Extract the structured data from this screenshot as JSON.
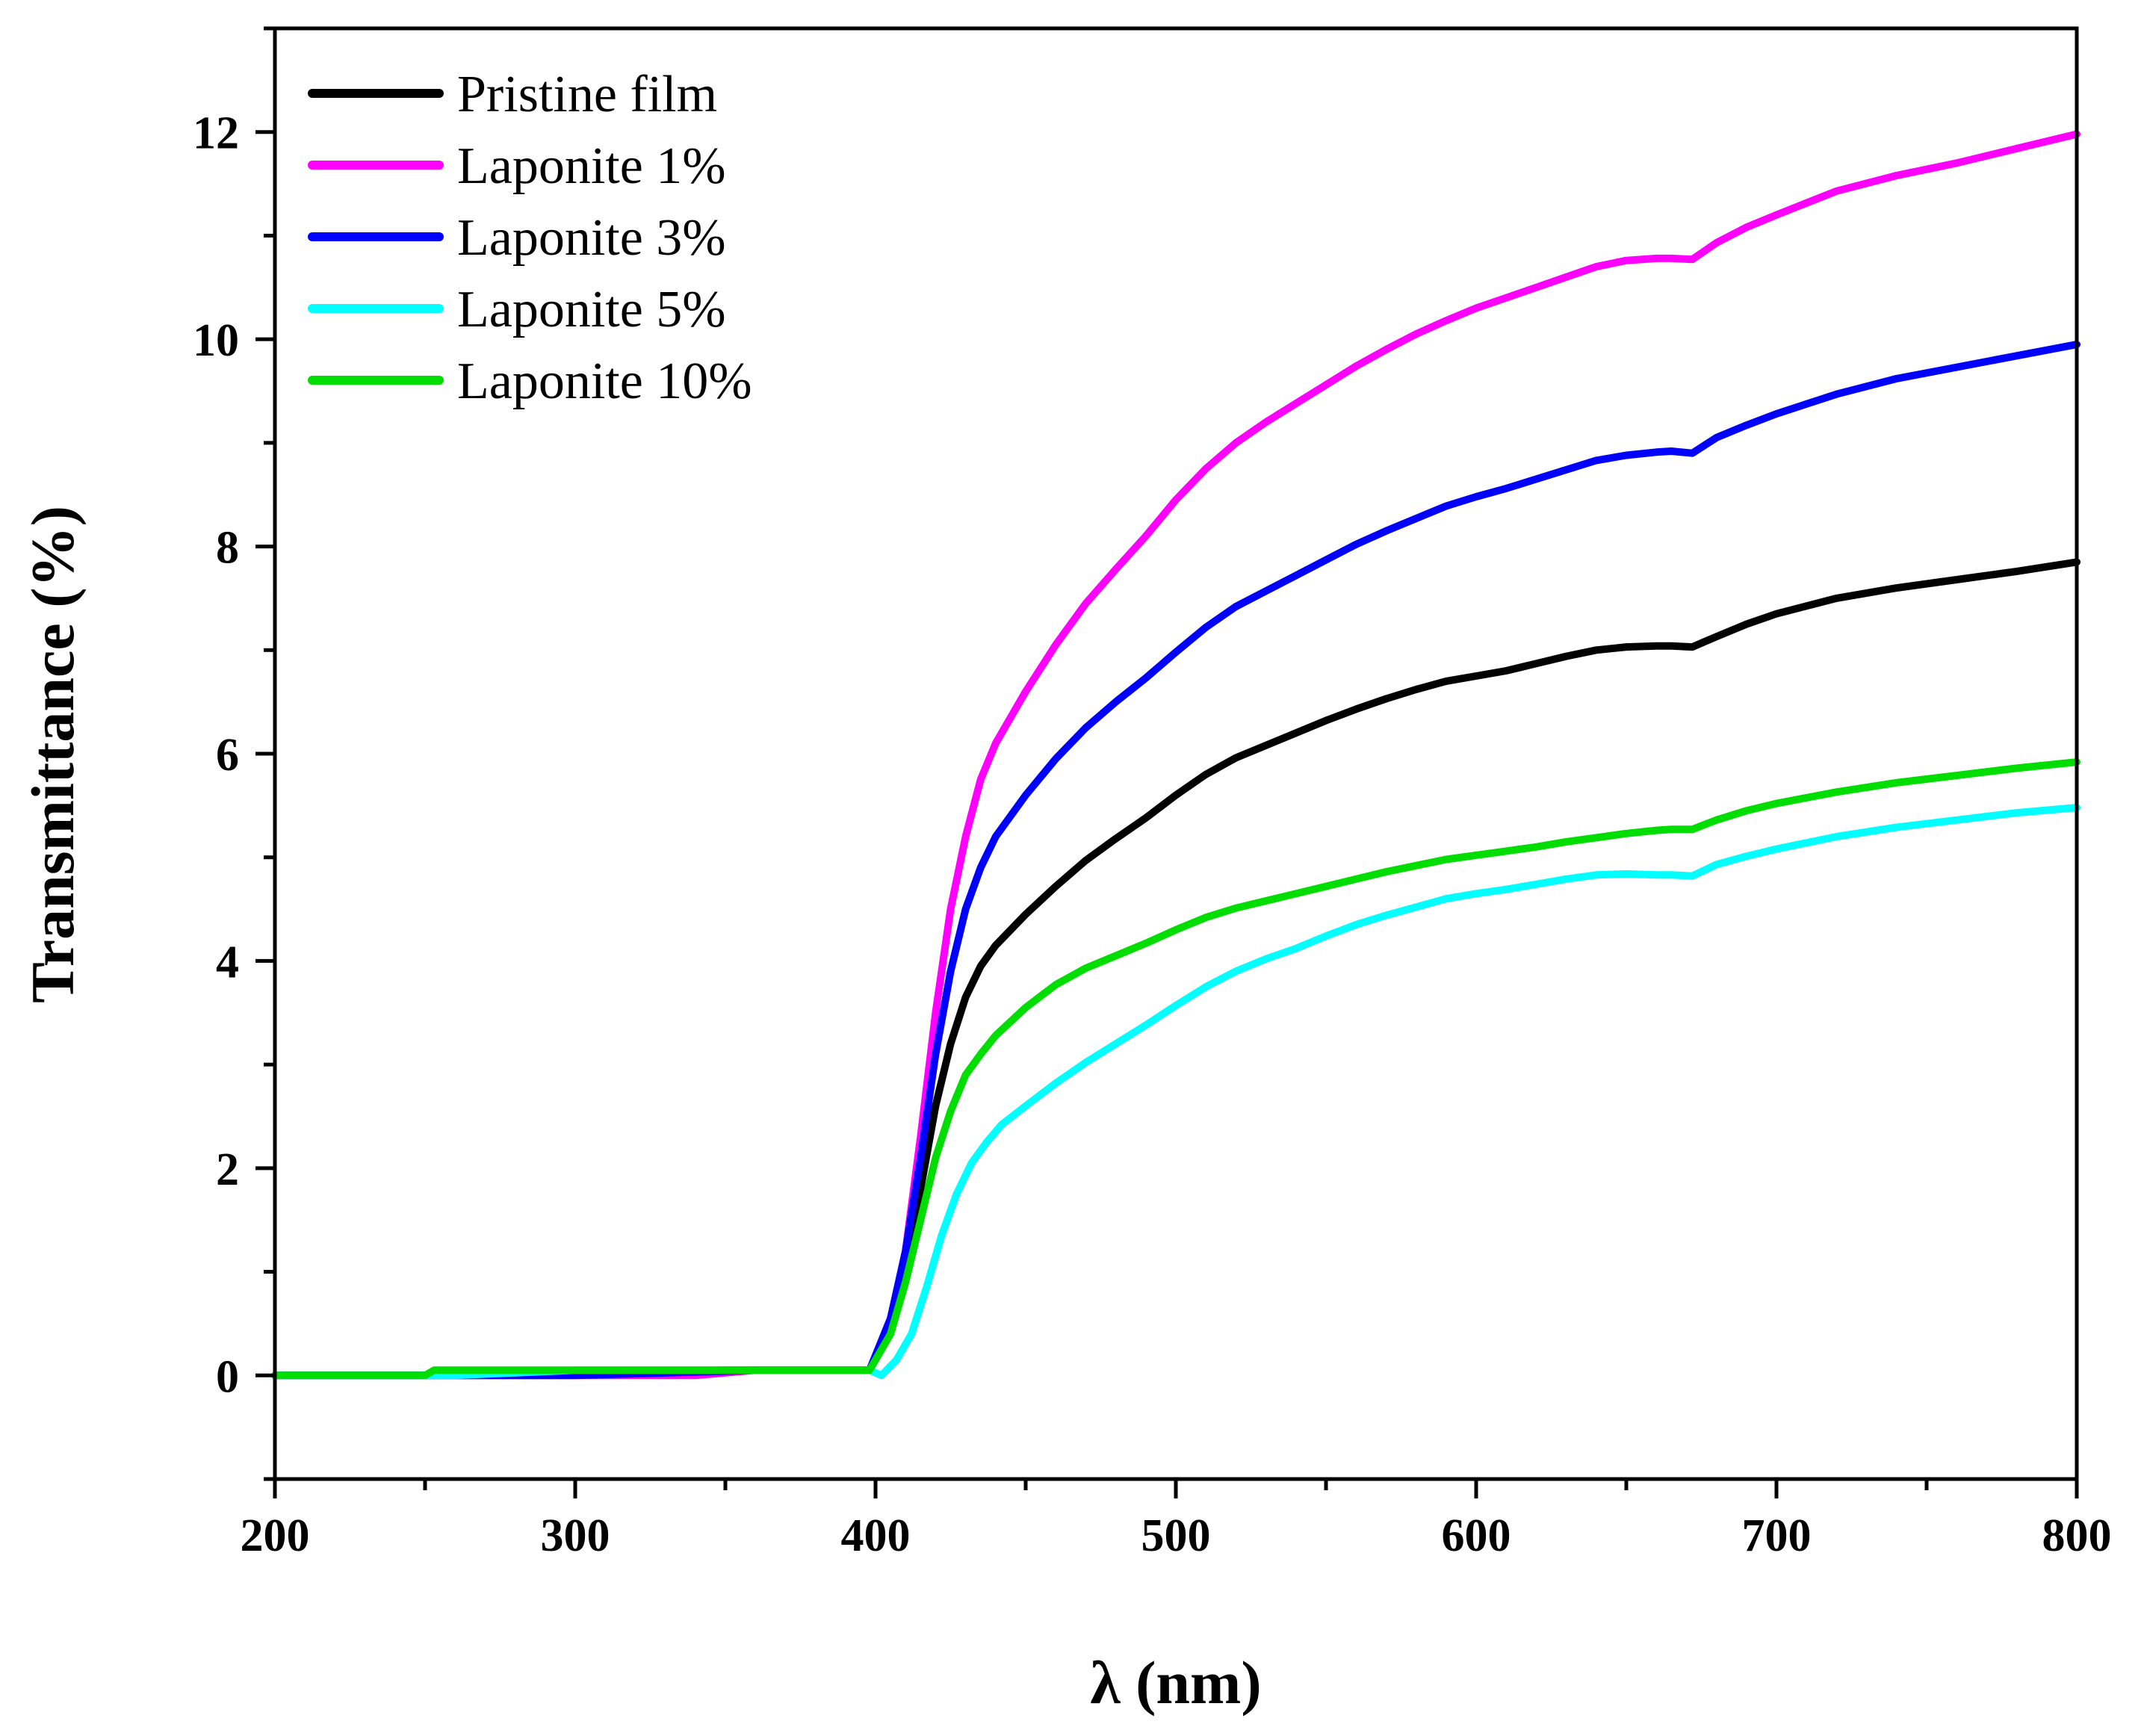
{
  "chart_data": {
    "type": "line",
    "title": "",
    "xlabel": "λ (nm)",
    "ylabel": "Transmittance (%)",
    "xlim": [
      200,
      800
    ],
    "ylim": [
      -1,
      13
    ],
    "x_ticks": [
      200,
      300,
      400,
      500,
      600,
      700,
      800
    ],
    "y_ticks": [
      0,
      2,
      4,
      6,
      8,
      10,
      12
    ],
    "grid": false,
    "legend_position": "top-left",
    "series": [
      {
        "name": "Pristine film",
        "color": "#000000",
        "x": [
          200,
          250,
          300,
          350,
          398,
          405,
          410,
          415,
          420,
          425,
          430,
          435,
          440,
          450,
          460,
          470,
          480,
          490,
          500,
          510,
          520,
          530,
          540,
          550,
          560,
          570,
          580,
          590,
          600,
          610,
          620,
          630,
          640,
          650,
          660,
          665,
          672,
          680,
          690,
          700,
          720,
          740,
          760,
          780,
          800
        ],
        "y": [
          0,
          0,
          0.03,
          0.05,
          0.05,
          0.45,
          1.0,
          1.8,
          2.6,
          3.2,
          3.65,
          3.95,
          4.15,
          4.45,
          4.72,
          4.97,
          5.18,
          5.38,
          5.6,
          5.8,
          5.96,
          6.08,
          6.2,
          6.32,
          6.43,
          6.53,
          6.62,
          6.7,
          6.75,
          6.8,
          6.87,
          6.94,
          7.0,
          7.03,
          7.04,
          7.04,
          7.03,
          7.13,
          7.25,
          7.35,
          7.5,
          7.6,
          7.68,
          7.76,
          7.85
        ]
      },
      {
        "name": "Laponite 1%",
        "color": "#ff00ff",
        "x": [
          200,
          300,
          340,
          360,
          398,
          405,
          410,
          415,
          420,
          425,
          430,
          435,
          440,
          450,
          460,
          470,
          480,
          490,
          500,
          510,
          520,
          530,
          540,
          550,
          560,
          570,
          580,
          590,
          600,
          610,
          620,
          630,
          640,
          650,
          660,
          665,
          672,
          680,
          690,
          700,
          720,
          740,
          760,
          780,
          800
        ],
        "y": [
          0,
          0,
          0,
          0.05,
          0.05,
          0.5,
          1.2,
          2.3,
          3.5,
          4.5,
          5.2,
          5.75,
          6.1,
          6.6,
          7.05,
          7.45,
          7.78,
          8.1,
          8.45,
          8.75,
          9.0,
          9.2,
          9.38,
          9.56,
          9.74,
          9.9,
          10.05,
          10.18,
          10.3,
          10.4,
          10.5,
          10.6,
          10.7,
          10.76,
          10.78,
          10.78,
          10.77,
          10.93,
          11.08,
          11.2,
          11.43,
          11.58,
          11.7,
          11.84,
          11.98
        ]
      },
      {
        "name": "Laponite 3%",
        "color": "#0000ff",
        "x": [
          200,
          300,
          360,
          398,
          405,
          410,
          415,
          420,
          425,
          430,
          435,
          440,
          450,
          460,
          470,
          480,
          490,
          500,
          510,
          520,
          530,
          540,
          550,
          560,
          570,
          580,
          590,
          600,
          610,
          620,
          630,
          640,
          650,
          660,
          665,
          672,
          680,
          690,
          700,
          720,
          740,
          760,
          780,
          800
        ],
        "y": [
          0,
          0,
          0.05,
          0.05,
          0.55,
          1.2,
          2.1,
          3.1,
          3.9,
          4.5,
          4.9,
          5.2,
          5.6,
          5.95,
          6.25,
          6.5,
          6.73,
          6.98,
          7.22,
          7.42,
          7.57,
          7.72,
          7.87,
          8.02,
          8.15,
          8.27,
          8.39,
          8.48,
          8.56,
          8.65,
          8.74,
          8.83,
          8.88,
          8.91,
          8.92,
          8.9,
          9.05,
          9.17,
          9.28,
          9.47,
          9.62,
          9.73,
          9.84,
          9.95
        ]
      },
      {
        "name": "Laponite 5%",
        "color": "#00ffff",
        "x": [
          200,
          260,
          300,
          398,
          402,
          407,
          412,
          417,
          422,
          427,
          432,
          437,
          442,
          450,
          460,
          470,
          480,
          490,
          500,
          510,
          520,
          530,
          540,
          550,
          560,
          570,
          580,
          590,
          600,
          610,
          620,
          630,
          640,
          650,
          660,
          665,
          672,
          680,
          690,
          700,
          720,
          740,
          760,
          780,
          800
        ],
        "y": [
          0,
          0,
          0.05,
          0.05,
          0.0,
          0.15,
          0.4,
          0.85,
          1.35,
          1.75,
          2.05,
          2.25,
          2.42,
          2.6,
          2.82,
          3.02,
          3.2,
          3.38,
          3.57,
          3.75,
          3.9,
          4.02,
          4.12,
          4.24,
          4.35,
          4.44,
          4.52,
          4.6,
          4.65,
          4.69,
          4.74,
          4.79,
          4.83,
          4.84,
          4.83,
          4.83,
          4.82,
          4.93,
          5.01,
          5.08,
          5.2,
          5.29,
          5.36,
          5.43,
          5.48
        ]
      },
      {
        "name": "Laponite 10%",
        "color": "#00dd00",
        "x": [
          200,
          250,
          253,
          300,
          398,
          405,
          410,
          415,
          420,
          425,
          430,
          435,
          440,
          450,
          460,
          470,
          480,
          490,
          500,
          510,
          520,
          530,
          540,
          550,
          560,
          570,
          580,
          590,
          600,
          610,
          620,
          630,
          640,
          650,
          660,
          665,
          672,
          680,
          690,
          700,
          720,
          740,
          760,
          780,
          800
        ],
        "y": [
          0,
          0,
          0.05,
          0.05,
          0.05,
          0.4,
          0.9,
          1.5,
          2.1,
          2.55,
          2.9,
          3.1,
          3.28,
          3.55,
          3.77,
          3.93,
          4.05,
          4.17,
          4.3,
          4.42,
          4.51,
          4.58,
          4.65,
          4.72,
          4.79,
          4.86,
          4.92,
          4.98,
          5.02,
          5.06,
          5.1,
          5.15,
          5.19,
          5.23,
          5.26,
          5.27,
          5.27,
          5.36,
          5.45,
          5.52,
          5.63,
          5.72,
          5.79,
          5.86,
          5.92
        ]
      }
    ]
  }
}
